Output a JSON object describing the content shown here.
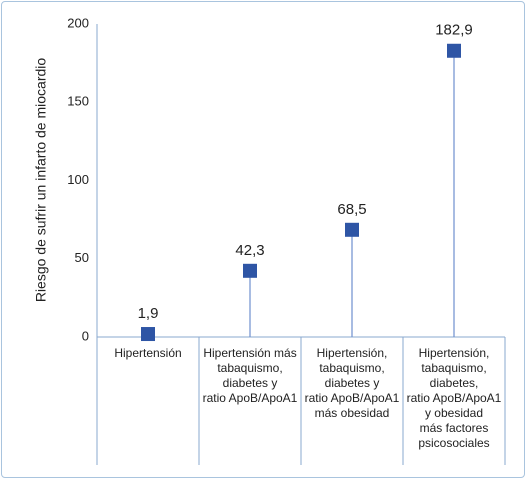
{
  "chart_data": {
    "type": "lollipop",
    "y_label": "Riesgo de sufrir un infarto de miocardio",
    "categories": [
      "Hipertensión",
      "Hipertensión más\ntabaquismo,\ndiabetes y\nratio ApoB/ApoA1",
      "Hipertensión,\ntabaquismo,\ndiabetes y\nratio ApoB/ApoA1\nmás obesidad",
      "Hipertensión,\ntabaquismo,\ndiabetes,\nratio ApoB/ApoA1\ny obesidad\nmás factores\npsicosociales"
    ],
    "values": [
      1.9,
      42.3,
      68.5,
      182.9
    ],
    "value_labels": [
      "1,9",
      "42,3",
      "68,5",
      "182,9"
    ],
    "color": "#2e55a5",
    "ylim": [
      0,
      200
    ],
    "yticks": [
      0,
      50,
      100,
      150,
      200
    ],
    "grid": false
  }
}
